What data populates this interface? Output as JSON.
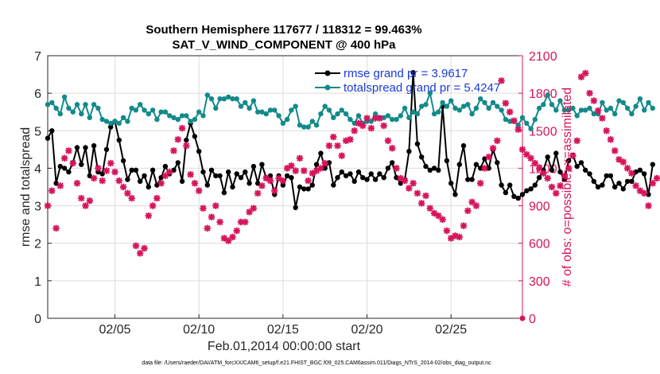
{
  "chart_data": {
    "type": "line",
    "title_line1": "Southern Hemisphere 117677 / 118312 = 99.463%",
    "title_line2": "SAT_V_WIND_COMPONENT @ 400 hPa",
    "xlabel": "Feb.01,2014 00:00:00 start",
    "ylabel_left": "rmse and totalspread",
    "ylabel_right": "# of obs: o=possible; ×=assimilated",
    "xlim": [
      1.0,
      29.25
    ],
    "ylim_left": [
      0,
      7
    ],
    "ylim_right": [
      0,
      2100
    ],
    "x_ticks": [
      {
        "value": 5,
        "label": "02/05"
      },
      {
        "value": 10,
        "label": "02/10"
      },
      {
        "value": 15,
        "label": "02/15"
      },
      {
        "value": 20,
        "label": "02/20"
      },
      {
        "value": 25,
        "label": "02/25"
      }
    ],
    "y_ticks_left": [
      "0",
      "1",
      "2",
      "3",
      "4",
      "5",
      "6",
      "7"
    ],
    "y_ticks_right": [
      "0",
      "300",
      "600",
      "900",
      "1200",
      "1500",
      "1800",
      "2100"
    ],
    "grid": true,
    "legend": [
      {
        "label": "rmse grand pr = 3.9617",
        "color": "#000000"
      },
      {
        "label": "totalspread grand pr = 5.4247",
        "color": "#138a8a"
      }
    ],
    "x_start": 1.0,
    "x_step": 0.25,
    "series": [
      {
        "name": "rmse",
        "axis": "left",
        "color": "#000000",
        "values": [
          4.8,
          5.0,
          3.6,
          4.05,
          4.0,
          3.9,
          4.15,
          4.55,
          4.1,
          4.55,
          3.8,
          4.6,
          3.9,
          3.85,
          4.5,
          5.1,
          5.25,
          4.75,
          4.2,
          3.7,
          3.95,
          3.95,
          3.65,
          3.8,
          3.5,
          3.95,
          3.55,
          3.75,
          4.05,
          3.85,
          3.95,
          4.15,
          3.65,
          4.75,
          5.2,
          4.85,
          4.45,
          3.9,
          3.55,
          3.95,
          3.8,
          3.8,
          3.35,
          3.9,
          3.5,
          3.85,
          3.75,
          3.9,
          3.6,
          4.05,
          3.6,
          4.1,
          3.75,
          3.8,
          3.3,
          3.8,
          3.55,
          3.8,
          3.75,
          2.95,
          3.5,
          3.45,
          3.45,
          3.55,
          4.1,
          4.4,
          4.0,
          4.15,
          3.55,
          3.75,
          3.9,
          3.8,
          3.85,
          3.65,
          3.9,
          3.75,
          3.7,
          3.85,
          3.7,
          3.85,
          3.75,
          4.0,
          4.15,
          3.75,
          3.6,
          3.7,
          4.45,
          6.55,
          4.65,
          4.3,
          4.05,
          3.95,
          4.0,
          3.95,
          5.65,
          4.2,
          3.6,
          3.3,
          4.1,
          4.6,
          3.7,
          3.7,
          4.1,
          4.0,
          4.25,
          4.0,
          4.5,
          4.15,
          3.55,
          3.35,
          3.55,
          3.25,
          3.2,
          3.3,
          3.4,
          3.45,
          3.55,
          3.75,
          3.95,
          4.3,
          3.95,
          4.4,
          3.9,
          3.7,
          4.2,
          4.35,
          4.05,
          4.15,
          3.95,
          3.85,
          3.65,
          3.5,
          3.55,
          3.8,
          3.8,
          3.5,
          3.6,
          3.45,
          3.65,
          3.65,
          3.9,
          3.95,
          3.85,
          3.3,
          4.1
        ]
      },
      {
        "name": "totalspread",
        "axis": "left",
        "color": "#138a8a",
        "values": [
          5.7,
          5.75,
          5.6,
          5.45,
          5.9,
          5.6,
          5.5,
          5.7,
          5.45,
          5.7,
          5.35,
          5.7,
          5.6,
          5.3,
          5.25,
          5.2,
          5.25,
          5.2,
          5.35,
          5.25,
          5.6,
          5.55,
          5.7,
          5.55,
          5.45,
          5.55,
          5.3,
          5.5,
          5.5,
          5.4,
          5.35,
          5.3,
          5.4,
          5.4,
          5.25,
          5.3,
          5.5,
          5.4,
          5.95,
          5.85,
          5.6,
          5.85,
          5.85,
          5.9,
          5.85,
          5.85,
          5.65,
          5.75,
          5.6,
          5.8,
          5.5,
          5.5,
          5.45,
          5.55,
          5.55,
          5.4,
          5.2,
          5.3,
          5.55,
          5.65,
          5.15,
          5.1,
          5.1,
          5.25,
          5.15,
          5.45,
          5.65,
          5.55,
          5.35,
          5.45,
          5.55,
          5.45,
          5.3,
          5.2,
          5.4,
          5.2,
          5.25,
          5.25,
          5.45,
          5.35,
          5.35,
          5.4,
          5.3,
          5.3,
          5.4,
          5.6,
          5.35,
          5.5,
          5.45,
          5.65,
          5.7,
          6.0,
          5.45,
          5.5,
          5.75,
          5.65,
          5.8,
          5.6,
          5.55,
          5.65,
          5.7,
          5.45,
          5.6,
          5.85,
          5.75,
          5.6,
          5.75,
          5.65,
          5.55,
          5.3,
          5.25,
          5.25,
          5.15,
          5.35,
          5.2,
          5.05,
          5.3,
          5.6,
          5.7,
          5.95,
          5.7,
          5.55,
          5.8,
          5.55,
          5.55,
          5.6,
          5.4,
          5.55,
          5.55,
          5.6,
          5.45,
          5.45,
          5.75,
          5.55,
          5.6,
          5.45,
          5.8,
          5.75,
          5.6,
          5.45,
          5.65,
          5.85,
          5.55,
          5.75,
          5.6
        ]
      },
      {
        "name": "obs assimilated",
        "axis": "right",
        "color": "#d6145c",
        "values": [
          900,
          1020,
          720,
          1060,
          1280,
          1340,
          1240,
          1080,
          960,
          900,
          940,
          1120,
          1200,
          1100,
          1180,
          1240,
          1170,
          1100,
          1050,
          1000,
          960,
          580,
          520,
          560,
          820,
          900,
          960,
          1080,
          1140,
          1170,
          1340,
          1430,
          1520,
          1380,
          1150,
          1080,
          1020,
          880,
          720,
          810,
          900,
          770,
          640,
          620,
          650,
          700,
          770,
          770,
          850,
          880,
          1000,
          1060,
          1120,
          1100,
          1020,
          1120,
          1100,
          1200,
          1220,
          1180,
          1280,
          1180,
          1100,
          1160,
          1180,
          1200,
          1240,
          1380,
          1450,
          1380,
          1300,
          1420,
          1430,
          1500,
          1560,
          1540,
          1600,
          1520,
          1600,
          1600,
          1540,
          1420,
          1360,
          1200,
          1120,
          1100,
          1040,
          1080,
          1000,
          920,
          980,
          880,
          840,
          820,
          790,
          700,
          640,
          660,
          650,
          740,
          860,
          930,
          900,
          1080,
          1200,
          1290,
          1360,
          1420,
          1900,
          1720,
          1650,
          1580,
          1510,
          1350,
          1310,
          1280,
          1240,
          1200,
          1160,
          1120,
          1050,
          1000,
          1060,
          1140,
          1200,
          1300,
          1420,
          1930,
          1960,
          1800,
          1740,
          1660,
          1600,
          1500,
          1430,
          1340,
          1270,
          1250,
          1200,
          1160,
          1060,
          1020,
          1000,
          900,
          1080,
          1120
        ]
      },
      {
        "name": "obs possible",
        "axis": "right",
        "markers": "circle",
        "color": "#d6145c",
        "points": [
          {
            "x": 29.25,
            "y": 0
          }
        ]
      }
    ]
  },
  "footer": "data file: /Users/raeder/DAI/ATM_forcXX/CAM6_setup/f.e21.FHIST_BGC.f09_025.CAM6assim.011/Diags_NTrS_2014-02/obs_diag_output.nc"
}
